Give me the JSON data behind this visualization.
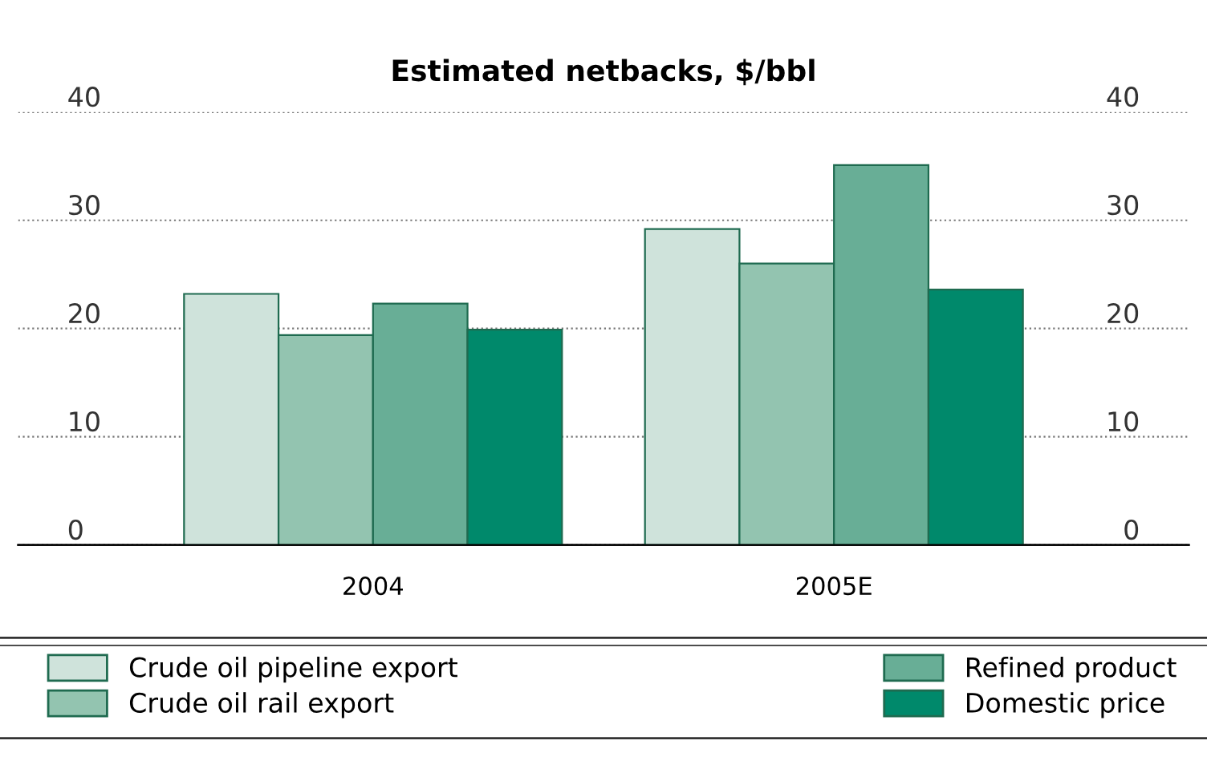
{
  "chart_data": {
    "type": "bar",
    "title": "Estimated netbacks, $/bbl",
    "categories": [
      "2004",
      "2005E"
    ],
    "series": [
      {
        "name": "Crude oil pipeline export",
        "color": "#cfe3db",
        "values": [
          23.2,
          29.2
        ]
      },
      {
        "name": "Crude oil rail export",
        "color": "#93c4b0",
        "values": [
          19.4,
          26.0
        ]
      },
      {
        "name": "Refined product",
        "color": "#68ae96",
        "values": [
          22.3,
          35.1
        ]
      },
      {
        "name": "Domestic price",
        "color": "#00896b",
        "values": [
          19.9,
          23.6
        ]
      }
    ],
    "ylim": [
      0,
      40
    ],
    "yticks": [
      0,
      10,
      20,
      30,
      40
    ],
    "y2lim": [
      0,
      40
    ],
    "y2ticks": [
      0,
      10,
      20,
      30,
      40
    ],
    "grid": "y",
    "legend": "bottom"
  }
}
